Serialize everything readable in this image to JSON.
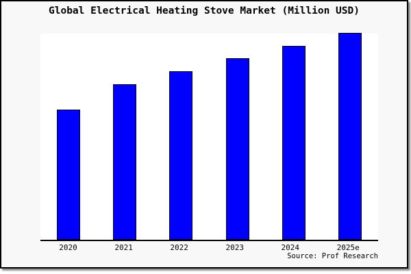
{
  "chart_data": {
    "type": "bar",
    "title": "Global Electrical Heating Stove Market (Million USD)",
    "categories": [
      "2020",
      "2021",
      "2022",
      "2023",
      "2024",
      "2025e"
    ],
    "series": [
      {
        "name": "Global Electrical Heating Stove Market",
        "values_pct_of_plot_height": [
          62.5,
          74.8,
          81.1,
          87.4,
          93.4,
          99.7
        ]
      }
    ],
    "xlabel": "",
    "ylabel": "",
    "y_axis_ticks": [],
    "grid": false,
    "legend": false,
    "source": "Source: Prof Research"
  },
  "colors": {
    "bar_fill": "#0000ff",
    "bar_border": "#000000",
    "card_background": "#f8f8f8",
    "plot_background": "#ffffff",
    "axis": "#000000",
    "text": "#000000",
    "frame_border": "#000000",
    "shadow": "#8f8f8f"
  }
}
